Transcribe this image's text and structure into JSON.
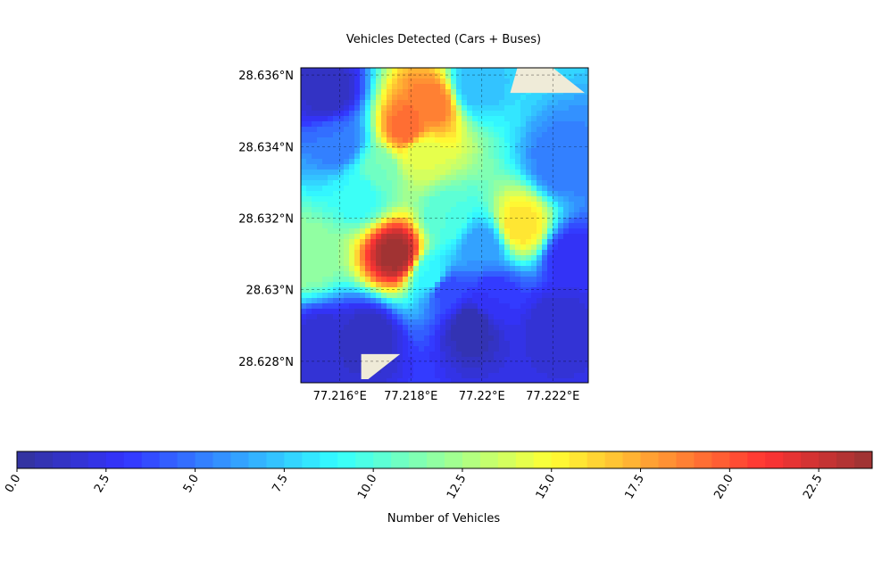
{
  "chart_data": {
    "type": "heatmap",
    "title": "Vehicles Detected (Cars + Buses)",
    "colorbar_label": "Number of Vehicles",
    "colormap": "jet",
    "colormap_alpha": 0.8,
    "land_color": "#efebd8",
    "grid": true,
    "xlim": [
      77.2149,
      77.223
    ],
    "ylim": [
      28.6274,
      28.6362
    ],
    "x_ticks": [
      77.216,
      77.218,
      77.22,
      77.222
    ],
    "x_tick_labels": [
      "77.216°E",
      "77.218°E",
      "77.22°E",
      "77.222°E"
    ],
    "y_ticks": [
      28.628,
      28.63,
      28.632,
      28.634,
      28.636
    ],
    "y_tick_labels": [
      "28.628°N",
      "28.63°N",
      "28.632°N",
      "28.634°N",
      "28.636°N"
    ],
    "colorbar_range": [
      0,
      24
    ],
    "colorbar_ticks": [
      0.0,
      2.5,
      5.0,
      7.5,
      10.0,
      12.5,
      15.0,
      17.5,
      20.0,
      22.5
    ],
    "colorbar_tick_labels": [
      "0.0",
      "2.5",
      "5.0",
      "7.5",
      "10.0",
      "12.5",
      "15.0",
      "17.5",
      "20.0",
      "22.5"
    ],
    "colorbar_levels": 48,
    "hotspots": [
      {
        "lon": 77.2176,
        "lat": 28.631,
        "value": 24
      },
      {
        "lon": 77.2179,
        "lat": 28.6345,
        "value": 19.5
      },
      {
        "lon": 77.2186,
        "lat": 28.6352,
        "value": 19
      },
      {
        "lon": 77.2211,
        "lat": 28.6318,
        "value": 16
      },
      {
        "lon": 77.2151,
        "lat": 28.6309,
        "value": 12
      },
      {
        "lon": 77.2186,
        "lat": 28.6304,
        "value": 9
      },
      {
        "lon": 77.219,
        "lat": 28.632,
        "value": 10
      },
      {
        "lon": 77.2166,
        "lat": 28.6327,
        "value": 9
      },
      {
        "lon": 77.216,
        "lat": 28.6341,
        "value": 5
      },
      {
        "lon": 77.22,
        "lat": 28.6312,
        "value": 6
      },
      {
        "lon": 77.219,
        "lat": 28.63,
        "value": 3.5
      },
      {
        "lon": 77.2222,
        "lat": 28.6335,
        "value": 5
      },
      {
        "lon": 77.2198,
        "lat": 28.6357,
        "value": 7
      },
      {
        "lon": 77.2203,
        "lat": 28.6298,
        "value": 3
      },
      {
        "lon": 77.2225,
        "lat": 28.6309,
        "value": 2.5
      },
      {
        "lon": 77.2155,
        "lat": 28.6285,
        "value": 1.5
      },
      {
        "lon": 77.2197,
        "lat": 28.629,
        "value": 0.5
      },
      {
        "lon": 77.2221,
        "lat": 28.629,
        "value": 1.5
      },
      {
        "lon": 77.2157,
        "lat": 28.6355,
        "value": 1
      },
      {
        "lon": 77.2168,
        "lat": 28.6287,
        "value": 1
      },
      {
        "lon": 77.2183,
        "lat": 28.6338,
        "value": 14
      },
      {
        "lon": 77.2171,
        "lat": 28.6333,
        "value": 11
      }
    ],
    "land_polygons": [
      [
        [
          77.221,
          28.6362
        ],
        [
          77.222,
          28.6362
        ],
        [
          77.2229,
          28.6355
        ],
        [
          77.2208,
          28.6355
        ]
      ],
      [
        [
          77.2166,
          28.6275
        ],
        [
          77.2166,
          28.6282
        ],
        [
          77.2177,
          28.6282
        ],
        [
          77.2168,
          28.6275
        ]
      ]
    ]
  }
}
